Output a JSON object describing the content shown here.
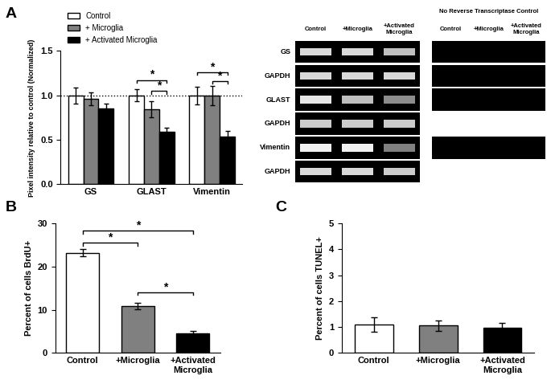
{
  "chart_data": [
    {
      "type": "grouped_bar",
      "title": "A",
      "y_label": "Pixel intensity relative to control (Normalized)",
      "categories": [
        "GS",
        "GLAST",
        "Vimentin"
      ],
      "series": [
        {
          "name": "Control",
          "color": "#ffffff",
          "values": [
            1.0,
            1.0,
            1.0
          ],
          "errors": [
            0.09,
            0.07,
            0.1
          ]
        },
        {
          "name": "+ Microglia",
          "color": "#808080",
          "values": [
            0.96,
            0.84,
            1.0
          ],
          "errors": [
            0.07,
            0.09,
            0.11
          ]
        },
        {
          "name": "+ Activated Microglia",
          "color": "#000000",
          "values": [
            0.85,
            0.59,
            0.54
          ],
          "errors": [
            0.06,
            0.05,
            0.06
          ]
        }
      ],
      "ylim": [
        0,
        1.5
      ],
      "yticks": [
        {
          "value": 0,
          "label": "0.0"
        },
        0.5,
        {
          "value": 1,
          "label": "1.0"
        },
        1.5
      ],
      "reference_line": 1.0,
      "legend": "upper left",
      "significance": [
        {
          "category": "GLAST",
          "from": "Control",
          "to": "+ Activated Microglia",
          "y": 1.17,
          "label": "*"
        },
        {
          "category": "GLAST",
          "from": "+ Microglia",
          "to": "+ Activated Microglia",
          "y": 1.05,
          "label": "*"
        },
        {
          "category": "Vimentin",
          "from": "Control",
          "to": "+ Activated Microglia",
          "y": 1.26,
          "label": "*"
        },
        {
          "category": "Vimentin",
          "from": "+ Microglia",
          "to": "+ Activated Microglia",
          "y": 1.16,
          "label": "*"
        }
      ]
    },
    {
      "type": "bar",
      "title": "B",
      "y_label": "Percent of cells BrdU+",
      "categories": [
        "Control",
        "+Microglia",
        "+Activated Microglia"
      ],
      "values": [
        23.2,
        10.8,
        4.6
      ],
      "errors": [
        0.8,
        0.7,
        0.4
      ],
      "colors": [
        "#ffffff",
        "#808080",
        "#000000"
      ],
      "ylim": [
        0,
        30
      ],
      "yticks": [
        0,
        10,
        20,
        30
      ],
      "significance": [
        {
          "from": "Control",
          "to": "+Microglia",
          "y": 25.5,
          "label": "*"
        },
        {
          "from": "Control",
          "to": "+Activated Microglia",
          "y": 28.3,
          "label": "*"
        },
        {
          "from": "+Microglia",
          "to": "+Activated Microglia",
          "y": 14,
          "label": "*"
        }
      ]
    },
    {
      "type": "bar",
      "title": "C",
      "y_label": "Percent of cells TUNEL+",
      "categories": [
        "Control",
        "+Microglia",
        "+Activated Microglia"
      ],
      "values": [
        1.1,
        1.05,
        0.97
      ],
      "errors": [
        0.28,
        0.2,
        0.2
      ],
      "colors": [
        "#ffffff",
        "#808080",
        "#000000"
      ],
      "ylim": [
        0,
        5
      ],
      "yticks": [
        0,
        1,
        2,
        3,
        4,
        5
      ],
      "significance": []
    }
  ],
  "gel": {
    "columns": [
      "Control",
      "+Microglia",
      "+Activated Microglia"
    ],
    "no_rt_title": "No Reverse Transcriptase Control",
    "no_rt_columns": [
      "Control",
      "+Microglia",
      "+Activated Microglia"
    ],
    "rows": [
      {
        "label": "GS",
        "band_intensity": [
          0.85,
          0.85,
          0.75
        ],
        "no_rt": true
      },
      {
        "label": "GAPDH",
        "band_intensity": [
          0.85,
          0.85,
          0.85
        ],
        "no_rt": true
      },
      {
        "label": "GLAST",
        "band_intensity": [
          0.9,
          0.75,
          0.55
        ],
        "no_rt": true
      },
      {
        "label": "GAPDH",
        "band_intensity": [
          0.8,
          0.8,
          0.8
        ],
        "no_rt": false
      },
      {
        "label": "Vimentin",
        "band_intensity": [
          0.95,
          0.95,
          0.5
        ],
        "no_rt": true
      },
      {
        "label": "GAPDH",
        "band_intensity": [
          0.85,
          0.85,
          0.8
        ],
        "no_rt": false
      }
    ]
  }
}
